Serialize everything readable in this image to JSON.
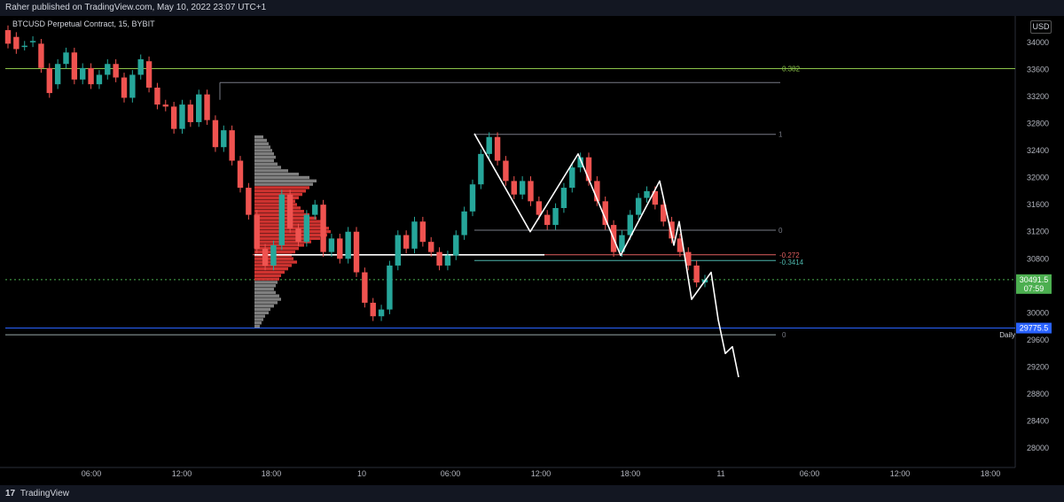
{
  "header": {
    "published": "Raher published on TradingView.com, May 10, 2022 23:07 UTC+1",
    "symbol": "BTCUSD Perpetual Contract, 15, BYBIT",
    "currency": "USD"
  },
  "footer": {
    "brand_logo": "17",
    "brand": "TradingView"
  },
  "colors": {
    "bull": "#26a69a",
    "bear": "#ef5350",
    "fib_green": "#8bc34a",
    "blue_line": "#2962ff",
    "teal": "#4db6ac",
    "current": "#4caf50",
    "grey": "#787b86"
  },
  "chart_data": {
    "type": "candlestick",
    "title": "BTCUSD Perpetual Contract, 15, BYBIT",
    "ylim": [
      27800,
      34400
    ],
    "y_ticks": [
      34000,
      33600,
      33200,
      32800,
      32400,
      32000,
      31600,
      31200,
      30800,
      30000,
      29600,
      29200,
      28800,
      28400,
      28000
    ],
    "x_ticks": [
      "06:00",
      "12:00",
      "18:00",
      "10",
      "06:00",
      "12:00",
      "18:00",
      "11",
      "06:00",
      "12:00",
      "18:00"
    ],
    "current_price": "30491.5",
    "countdown": "07:59",
    "blue_line_price": "29775.5",
    "daily_label": "Daily",
    "fib_labels": [
      "0.382",
      "1",
      "0",
      "-0.272",
      "-0.3414",
      "0"
    ],
    "price_path": [
      [
        34180,
        33980
      ],
      [
        34080,
        33900
      ],
      [
        33950,
        33950
      ],
      [
        34000,
        34020
      ],
      [
        33980,
        33620
      ],
      [
        33620,
        33250
      ],
      [
        33380,
        33680
      ],
      [
        33680,
        33850
      ],
      [
        33850,
        33450
      ],
      [
        33450,
        33620
      ],
      [
        33620,
        33380
      ],
      [
        33380,
        33520
      ],
      [
        33520,
        33680
      ],
      [
        33680,
        33480
      ],
      [
        33480,
        33180
      ],
      [
        33180,
        33520
      ],
      [
        33520,
        33750
      ],
      [
        33720,
        33330
      ],
      [
        33330,
        33080
      ],
      [
        33080,
        33050
      ],
      [
        33050,
        32720
      ],
      [
        32720,
        33080
      ],
      [
        33080,
        32820
      ],
      [
        32820,
        33230
      ],
      [
        33230,
        32850
      ],
      [
        32850,
        32450
      ],
      [
        32450,
        32700
      ],
      [
        32700,
        32250
      ],
      [
        32250,
        31850
      ],
      [
        31850,
        31450
      ],
      [
        31450,
        30950
      ],
      [
        30950,
        30700
      ],
      [
        30700,
        31000
      ],
      [
        31000,
        31750
      ],
      [
        31750,
        31250
      ],
      [
        31250,
        31050
      ],
      [
        31050,
        31450
      ],
      [
        31450,
        31600
      ],
      [
        31600,
        30900
      ],
      [
        30900,
        31100
      ],
      [
        31100,
        30800
      ],
      [
        30800,
        31200
      ],
      [
        31200,
        30600
      ],
      [
        30600,
        30150
      ],
      [
        30150,
        29950
      ],
      [
        29950,
        30050
      ],
      [
        30050,
        30700
      ],
      [
        30700,
        31150
      ],
      [
        31150,
        30950
      ],
      [
        30950,
        31350
      ],
      [
        31350,
        31050
      ],
      [
        31050,
        30900
      ],
      [
        30900,
        30700
      ],
      [
        30700,
        30850
      ],
      [
        30850,
        31150
      ],
      [
        31150,
        31500
      ],
      [
        31500,
        31900
      ],
      [
        31900,
        32350
      ],
      [
        32350,
        32600
      ],
      [
        32600,
        32250
      ],
      [
        32250,
        31950
      ],
      [
        31950,
        31750
      ],
      [
        31750,
        31950
      ],
      [
        31950,
        31650
      ],
      [
        31650,
        31450
      ],
      [
        31450,
        31300
      ],
      [
        31300,
        31550
      ],
      [
        31550,
        31850
      ],
      [
        31850,
        32150
      ],
      [
        32150,
        32300
      ],
      [
        32300,
        31950
      ],
      [
        31950,
        31650
      ],
      [
        31650,
        31300
      ],
      [
        31300,
        30900
      ],
      [
        30900,
        31150
      ],
      [
        31150,
        31450
      ],
      [
        31450,
        31700
      ],
      [
        31700,
        31800
      ],
      [
        31800,
        31600
      ],
      [
        31600,
        31350
      ],
      [
        31350,
        31100
      ],
      [
        31100,
        30900
      ],
      [
        30900,
        30700
      ],
      [
        30700,
        30450
      ],
      [
        30450,
        30491.5
      ]
    ],
    "drawn_path": [
      [
        32650,
        0
      ],
      [
        31200,
        0
      ],
      [
        32350,
        0
      ],
      [
        30850,
        0
      ],
      [
        31950,
        0
      ],
      [
        31000,
        0
      ],
      [
        31350,
        0
      ],
      [
        30200,
        0
      ],
      [
        30600,
        0
      ],
      [
        29900,
        0
      ],
      [
        29400,
        0
      ],
      [
        29500,
        0
      ],
      [
        29050,
        0
      ]
    ],
    "volume_profile_levels": [
      32600,
      32550,
      32500,
      32450,
      32400,
      32350,
      32300,
      32250,
      32200,
      32150,
      32100,
      32050,
      32000,
      31950,
      31900,
      31850,
      31800,
      31750,
      31700,
      31650,
      31600,
      31550,
      31500,
      31450,
      31400,
      31350,
      31300,
      31250,
      31200,
      31150,
      31100,
      31050,
      31000,
      30950,
      30900,
      30850,
      30800,
      30750,
      30700,
      30650,
      30600,
      30550,
      30500,
      30450,
      30400,
      30350,
      30300,
      30250,
      30200,
      30150,
      30100,
      30050,
      30000,
      29950,
      29900,
      29850,
      29800
    ],
    "volume_profile_sizes": [
      10,
      14,
      16,
      18,
      20,
      22,
      24,
      22,
      26,
      30,
      38,
      50,
      62,
      70,
      66,
      62,
      58,
      54,
      50,
      46,
      48,
      52,
      56,
      62,
      70,
      76,
      80,
      84,
      86,
      82,
      74,
      64,
      56,
      50,
      46,
      42,
      44,
      48,
      42,
      38,
      34,
      30,
      28,
      26,
      24,
      22,
      24,
      28,
      30,
      26,
      22,
      18,
      16,
      12,
      10,
      8,
      6
    ]
  }
}
